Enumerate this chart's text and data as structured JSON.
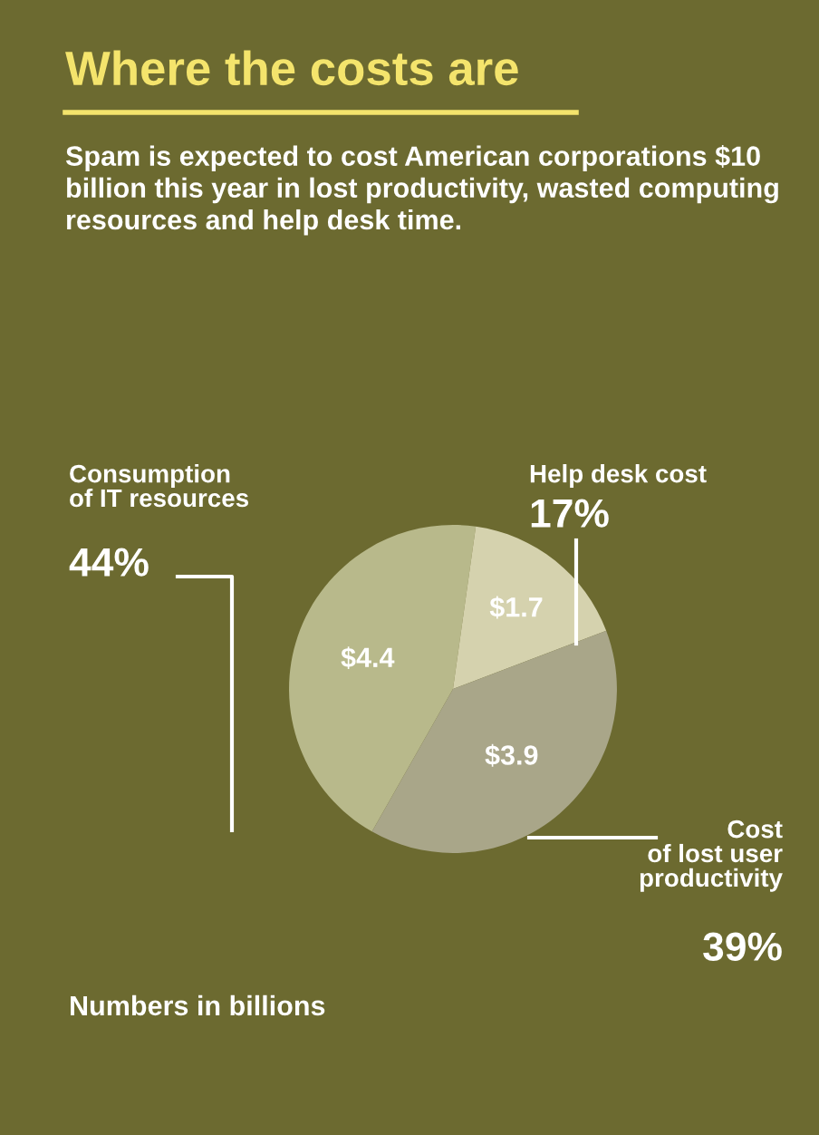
{
  "chart_data": {
    "type": "pie",
    "title": "Where the costs are",
    "subtitle": "Spam is expected to cost American corporations $10 billion this year in lost productivity, wasted computing resources and help desk time.",
    "categories": [
      "Consumption\nof IT resources",
      "Help desk cost",
      "Cost\nof lost user\nproductivity"
    ],
    "values": [
      44,
      17,
      39
    ],
    "value_labels": [
      "44%",
      "17%",
      "39%"
    ],
    "colors": [
      "#b8b98b",
      "#d5d2ae",
      "#a9a689"
    ],
    "annotations": [
      "$4.4",
      "$1.7",
      "$3.9",
      "Numbers in billions"
    ],
    "legend": false
  }
}
